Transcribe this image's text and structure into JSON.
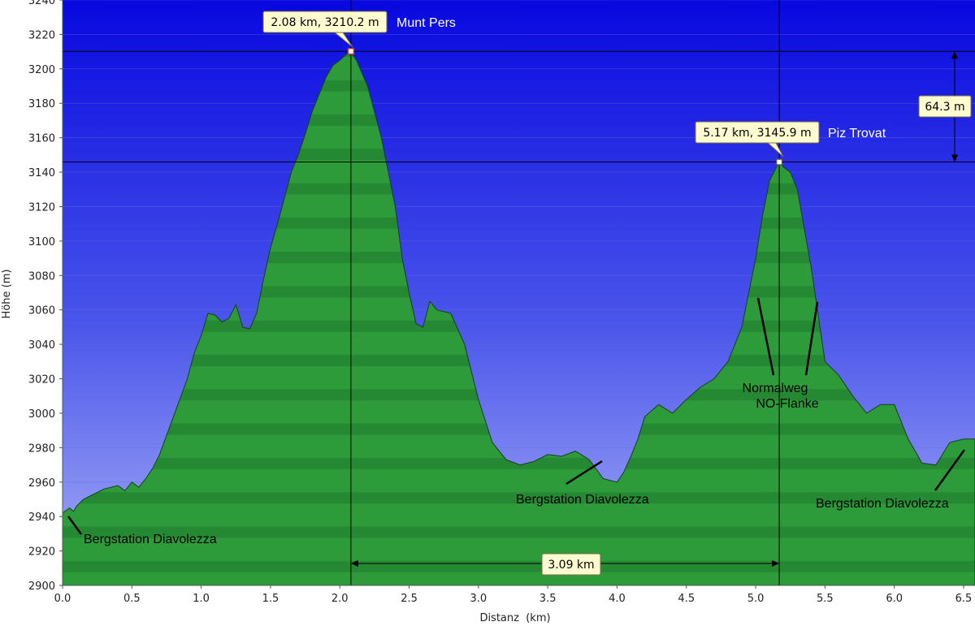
{
  "chart_data": {
    "type": "area",
    "xlabel": "Distanz  (km)",
    "ylabel": "Höhe (m)",
    "xlim": [
      0.0,
      6.5
    ],
    "ylim": [
      2900,
      3240
    ],
    "x_ticks": [
      "0.0",
      "0.5",
      "1.0",
      "1.5",
      "2.0",
      "2.5",
      "3.0",
      "3.5",
      "4.0",
      "4.5",
      "5.0",
      "5.5",
      "6.0",
      "6.5"
    ],
    "y_ticks": [
      "2900",
      "2920",
      "2940",
      "2960",
      "2980",
      "3000",
      "3020",
      "3040",
      "3060",
      "3080",
      "3100",
      "3120",
      "3140",
      "3160",
      "3180",
      "3200",
      "3220",
      "3240"
    ],
    "grid": true,
    "colors": {
      "fill": "#2a9a3a",
      "outline": "#1c4a22",
      "sky_top": "#0a0ae0",
      "sky_bottom": "#9aa2f5"
    },
    "series": [
      {
        "x": [
          0.0,
          0.05,
          0.08,
          0.1,
          0.15,
          0.2,
          0.3,
          0.4,
          0.45,
          0.5,
          0.55,
          0.6,
          0.65,
          0.7,
          0.8,
          0.9,
          0.95,
          1.0,
          1.05,
          1.1,
          1.15,
          1.2,
          1.25,
          1.3,
          1.35,
          1.4,
          1.45,
          1.5,
          1.55,
          1.6,
          1.65,
          1.7,
          1.75,
          1.8,
          1.85,
          1.9,
          1.95,
          2.0,
          2.04,
          2.08,
          2.12,
          2.2,
          2.3,
          2.4,
          2.45,
          2.5,
          2.55,
          2.6,
          2.65,
          2.7,
          2.8,
          2.9,
          3.0,
          3.1,
          3.2,
          3.3,
          3.4,
          3.5,
          3.6,
          3.7,
          3.8,
          3.9,
          4.0,
          4.05,
          4.1,
          4.15,
          4.2,
          4.3,
          4.4,
          4.5,
          4.6,
          4.7,
          4.8,
          4.9,
          5.0,
          5.05,
          5.1,
          5.15,
          5.17,
          5.2,
          5.25,
          5.3,
          5.4,
          5.5,
          5.6,
          5.7,
          5.8,
          5.9,
          6.0,
          6.1,
          6.2,
          6.3,
          6.4,
          6.5
        ],
        "y": [
          2942,
          2945,
          2943,
          2946,
          2950,
          2952,
          2956,
          2958,
          2955,
          2960,
          2957,
          2962,
          2968,
          2976,
          2998,
          3020,
          3035,
          3045,
          3058,
          3057,
          3053,
          3055,
          3063,
          3050,
          3049,
          3058,
          3078,
          3096,
          3110,
          3125,
          3140,
          3150,
          3162,
          3175,
          3185,
          3195,
          3202,
          3205,
          3208,
          3210,
          3205,
          3190,
          3160,
          3120,
          3090,
          3070,
          3052,
          3050,
          3065,
          3060,
          3058,
          3040,
          3008,
          2983,
          2973,
          2970,
          2972,
          2976,
          2975,
          2978,
          2973,
          2962,
          2960,
          2966,
          2975,
          2985,
          2998,
          3005,
          3000,
          3008,
          3015,
          3020,
          3030,
          3050,
          3090,
          3115,
          3135,
          3143,
          3145.9,
          3143,
          3140,
          3130,
          3085,
          3030,
          3022,
          3010,
          3000,
          3005,
          3005,
          2985,
          2971,
          2970,
          2983,
          2985
        ]
      }
    ],
    "markers": [
      {
        "x": 2.08,
        "y": 3210.2,
        "label": "2.08 km, 3210.2 m",
        "name": "Munt Pers"
      },
      {
        "x": 5.17,
        "y": 3145.9,
        "label": "5.17 km, 3145.9 m",
        "name": "Piz Trovat"
      }
    ],
    "measurements": {
      "height_diff": "64.3 m",
      "distance": "3.09 km"
    },
    "annotations": [
      {
        "text": "Bergstation Diavolezza",
        "place": "bottom-left"
      },
      {
        "text": "Bergstation Diavolezza",
        "place": "bottom-middle"
      },
      {
        "text": "Bergstation Diavolezza",
        "place": "bottom-right"
      },
      {
        "text": "Normalweg",
        "place": "right-peak"
      },
      {
        "text": "NO-Flanke",
        "place": "right-peak"
      }
    ]
  }
}
